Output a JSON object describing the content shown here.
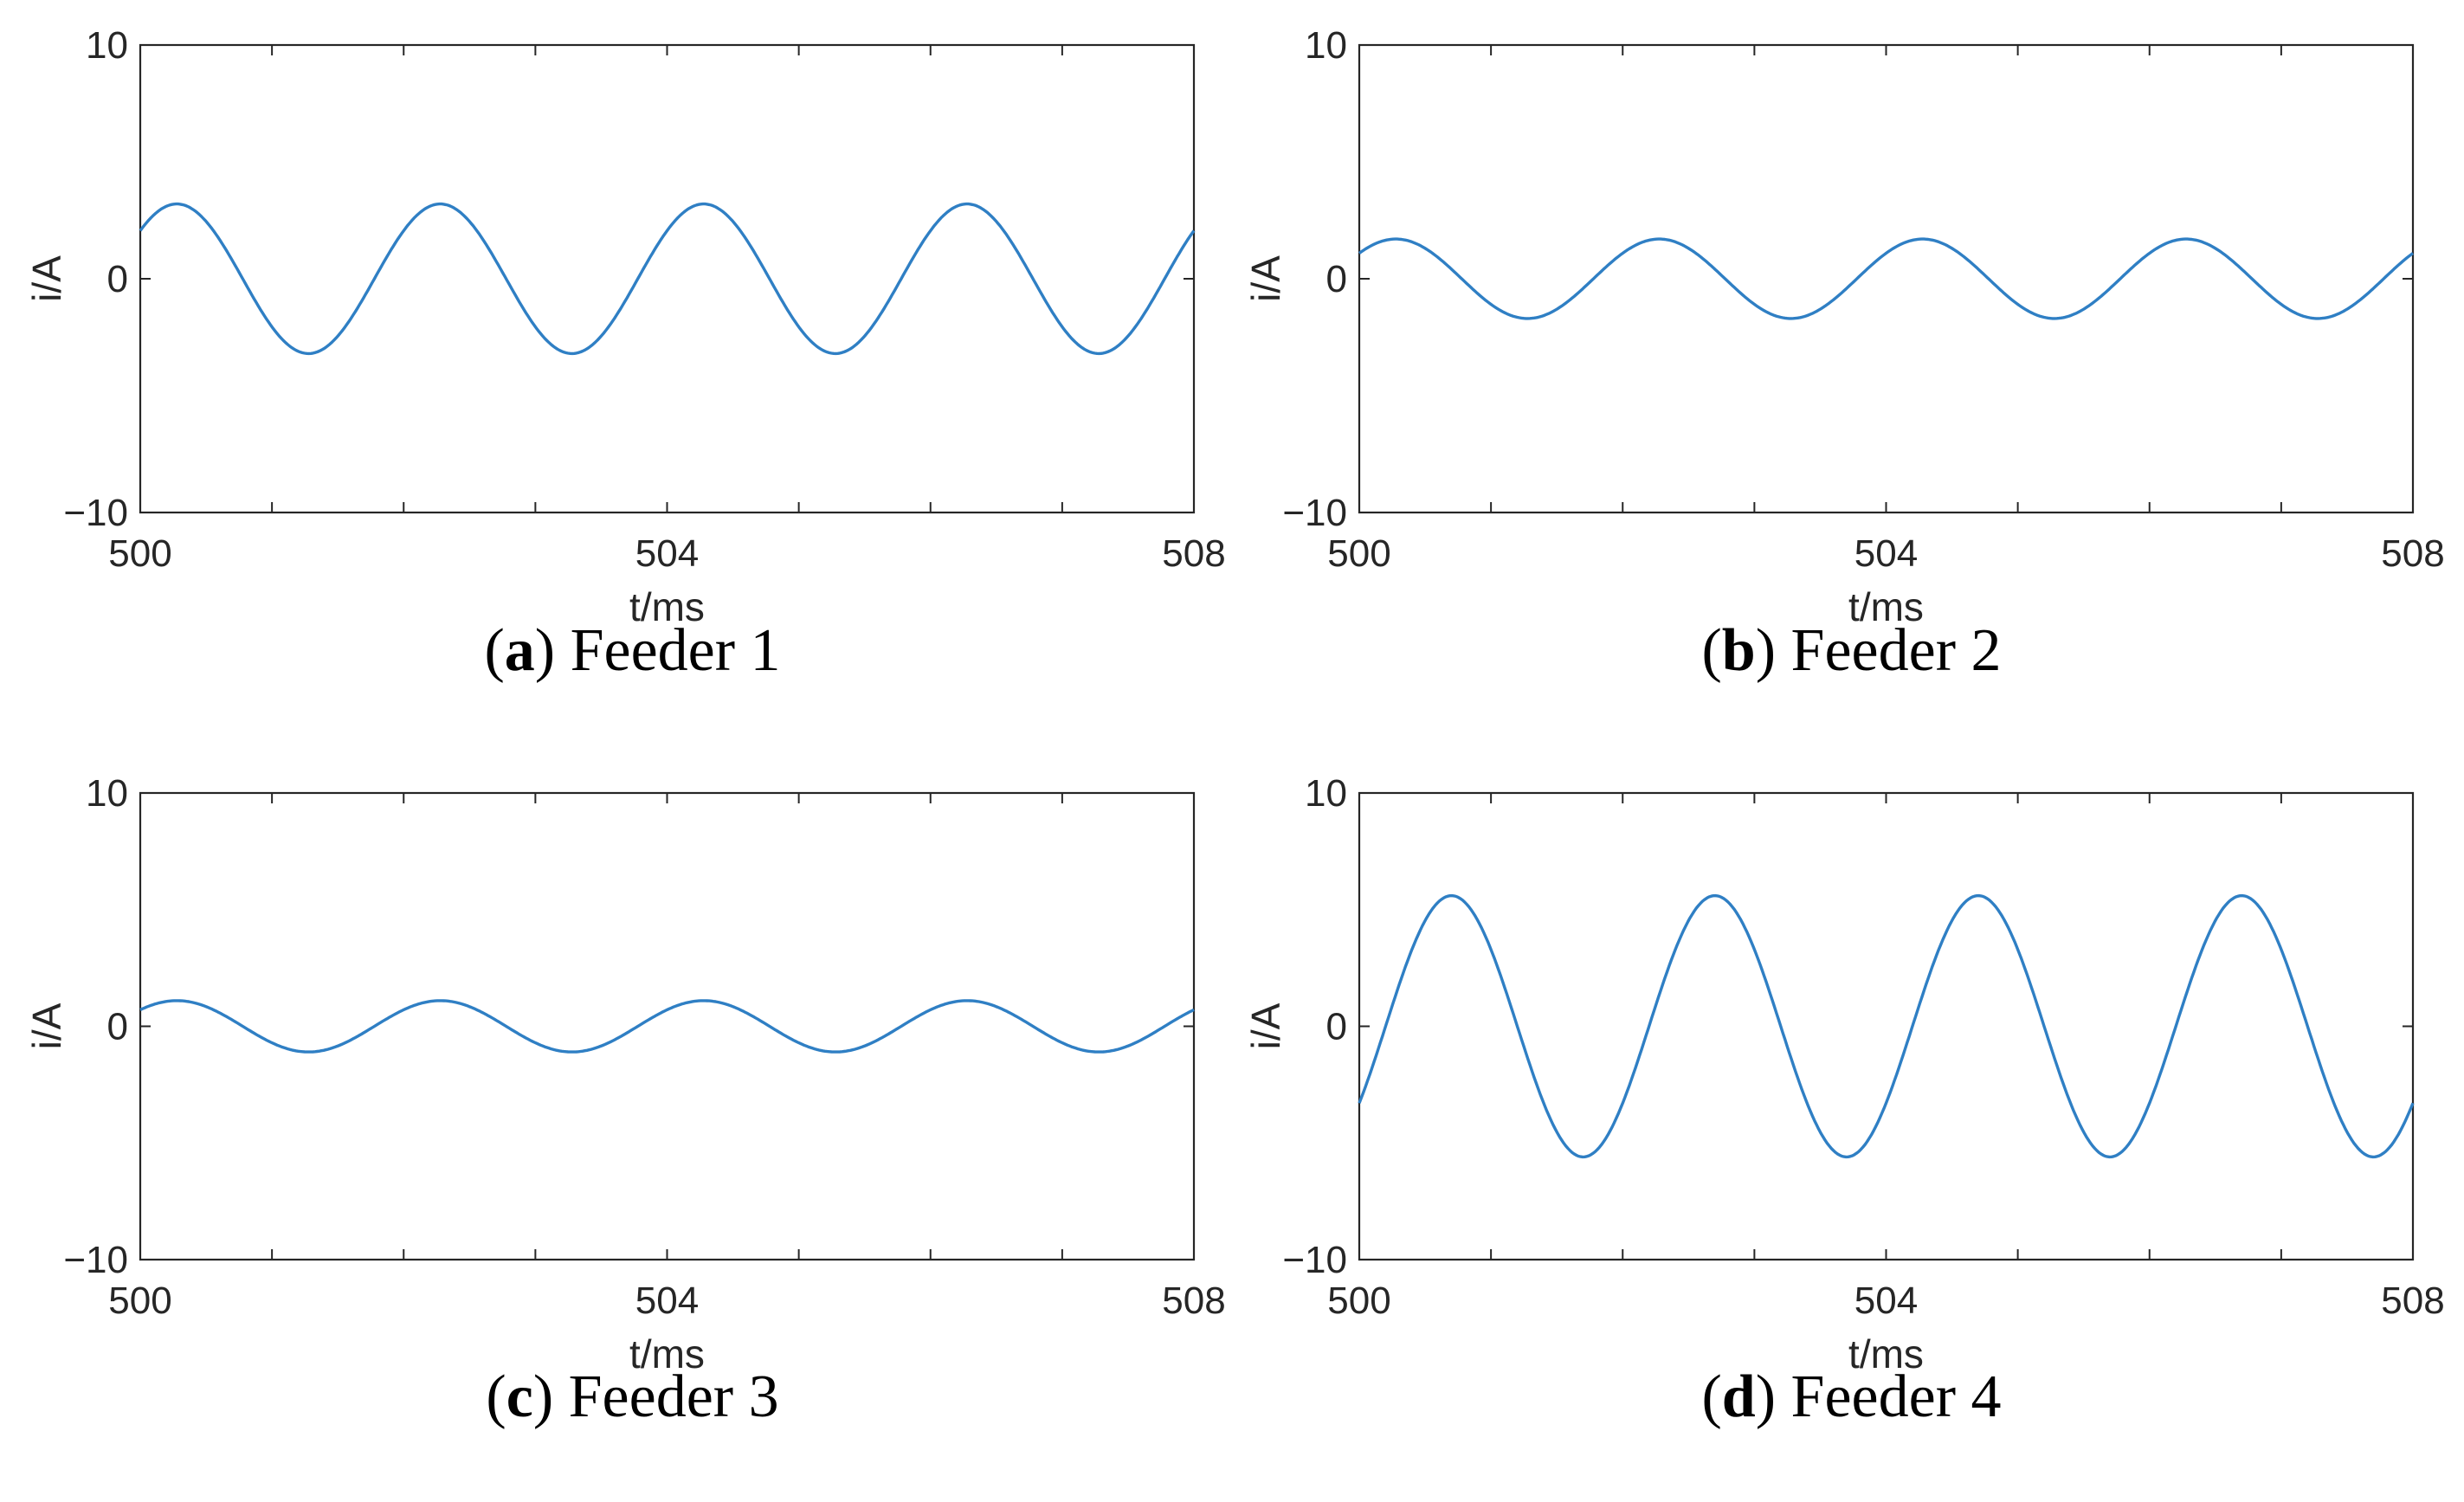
{
  "chart_data": [
    {
      "type": "line",
      "caption": {
        "letter": "a",
        "text": "Feeder 1"
      },
      "xlabel": "t/ms",
      "ylabel": "i/A",
      "xlim": [
        500,
        508
      ],
      "ylim": [
        -10,
        10
      ],
      "x_tick_labels": [
        "500",
        "504",
        "508"
      ],
      "y_tick_labels": [
        "10",
        "0",
        "−10"
      ],
      "x_minor_ticks_every": 1,
      "series": [
        {
          "function": "sine",
          "amplitude": 3.2,
          "period_ms": 2,
          "phase_deg": 40,
          "x": [
            500,
            500.25,
            500.5,
            500.75,
            501,
            501.25,
            501.5,
            501.75,
            502,
            502.25,
            502.5,
            502.75,
            503,
            503.25,
            503.5,
            503.75,
            504,
            504.25,
            504.5,
            504.75,
            505,
            505.25,
            505.5,
            505.75,
            506,
            506.25,
            506.5,
            506.75,
            507,
            507.25,
            507.5,
            507.75,
            508
          ],
          "y": [
            2.06,
            3.15,
            2.45,
            0.56,
            -2.06,
            -3.15,
            -2.45,
            -0.56,
            2.06,
            3.15,
            2.45,
            0.56,
            -2.06,
            -3.15,
            -2.45,
            -0.56,
            2.06,
            3.15,
            2.45,
            0.56,
            -2.06,
            -3.15,
            -2.45,
            -0.56,
            2.06,
            3.15,
            2.45,
            0.56,
            -2.06,
            -3.15,
            -2.45,
            -0.56,
            2.06
          ]
        }
      ]
    },
    {
      "type": "line",
      "caption": {
        "letter": "b",
        "text": "Feeder 2"
      },
      "xlabel": "t/ms",
      "ylabel": "i/A",
      "xlim": [
        500,
        508
      ],
      "ylim": [
        -10,
        10
      ],
      "x_tick_labels": [
        "500",
        "504",
        "508"
      ],
      "y_tick_labels": [
        "10",
        "0",
        "−10"
      ],
      "x_minor_ticks_every": 1,
      "series": [
        {
          "function": "sine",
          "amplitude": 1.7,
          "period_ms": 2,
          "phase_deg": 40,
          "x": [
            500,
            500.25,
            500.5,
            500.75,
            501,
            501.25,
            501.5,
            501.75,
            502,
            502.25,
            502.5,
            502.75,
            503,
            503.25,
            503.5,
            503.75,
            504,
            504.25,
            504.5,
            504.75,
            505,
            505.25,
            505.5,
            505.75,
            506,
            506.25,
            506.5,
            506.75,
            507,
            507.25,
            507.5,
            507.75,
            508
          ],
          "y": [
            1.09,
            1.67,
            1.3,
            0.3,
            -1.09,
            -1.67,
            -1.3,
            -0.3,
            1.09,
            1.67,
            1.3,
            0.3,
            -1.09,
            -1.67,
            -1.3,
            -0.3,
            1.09,
            1.67,
            1.3,
            0.3,
            -1.09,
            -1.67,
            -1.3,
            -0.3,
            1.09,
            1.67,
            1.3,
            0.3,
            -1.09,
            -1.67,
            -1.3,
            -0.3,
            1.09
          ]
        }
      ]
    },
    {
      "type": "line",
      "caption": {
        "letter": "c",
        "text": "Feeder 3"
      },
      "xlabel": "t/ms",
      "ylabel": "i/A",
      "xlim": [
        500,
        508
      ],
      "ylim": [
        -10,
        10
      ],
      "x_tick_labels": [
        "500",
        "504",
        "508"
      ],
      "y_tick_labels": [
        "10",
        "0",
        "−10"
      ],
      "x_minor_ticks_every": 1,
      "series": [
        {
          "function": "sine",
          "amplitude": 1.1,
          "period_ms": 2,
          "phase_deg": 40,
          "x": [
            500,
            500.25,
            500.5,
            500.75,
            501,
            501.25,
            501.5,
            501.75,
            502,
            502.25,
            502.5,
            502.75,
            503,
            503.25,
            503.5,
            503.75,
            504,
            504.25,
            504.5,
            504.75,
            505,
            505.25,
            505.5,
            505.75,
            506,
            506.25,
            506.5,
            506.75,
            507,
            507.25,
            507.5,
            507.75,
            508
          ],
          "y": [
            0.71,
            1.08,
            0.84,
            0.19,
            -0.71,
            -1.08,
            -0.84,
            -0.19,
            0.71,
            1.08,
            0.84,
            0.19,
            -0.71,
            -1.08,
            -0.84,
            -0.19,
            0.71,
            1.08,
            0.84,
            0.19,
            -0.71,
            -1.08,
            -0.84,
            -0.19,
            0.71,
            1.08,
            0.84,
            0.19,
            -0.71,
            -1.08,
            -0.84,
            -0.19,
            0.71
          ]
        }
      ]
    },
    {
      "type": "line",
      "caption": {
        "letter": "d",
        "text": "Feeder 4"
      },
      "xlabel": "t/ms",
      "ylabel": "i/A",
      "xlim": [
        500,
        508
      ],
      "ylim": [
        -10,
        10
      ],
      "x_tick_labels": [
        "500",
        "504",
        "508"
      ],
      "y_tick_labels": [
        "10",
        "0",
        "−10"
      ],
      "x_minor_ticks_every": 1,
      "series": [
        {
          "function": "sine",
          "amplitude": 5.6,
          "period_ms": 2,
          "phase_deg": -36,
          "x": [
            500,
            500.25,
            500.5,
            500.75,
            501,
            501.25,
            501.5,
            501.75,
            502,
            502.25,
            502.5,
            502.75,
            503,
            503.25,
            503.5,
            503.75,
            504,
            504.25,
            504.5,
            504.75,
            505,
            505.25,
            505.5,
            505.75,
            506,
            506.25,
            506.5,
            506.75,
            507,
            507.25,
            507.5,
            507.75,
            508
          ],
          "y": [
            -3.29,
            0.88,
            4.99,
            5.53,
            3.29,
            -0.88,
            -4.99,
            -5.53,
            -3.29,
            0.88,
            4.99,
            5.53,
            3.29,
            -0.88,
            -4.99,
            -5.53,
            -3.29,
            0.88,
            4.99,
            5.53,
            3.29,
            -0.88,
            -4.99,
            -5.53,
            -3.29,
            0.88,
            4.99,
            5.53,
            3.29,
            -0.88,
            -4.99,
            -5.53,
            -3.29
          ]
        }
      ]
    }
  ],
  "colors": {
    "line": "#2f7fc4",
    "axes": "#262626"
  }
}
